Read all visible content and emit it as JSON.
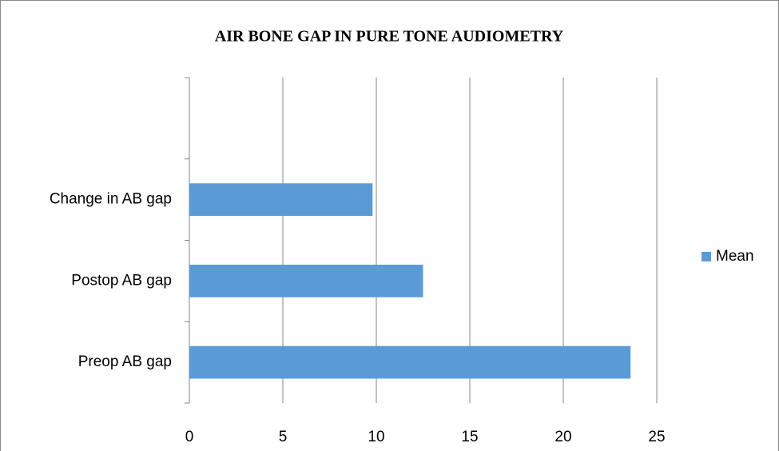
{
  "chart_data": {
    "type": "barh",
    "title": "AIR BONE GAP IN PURE TONE AUDIOMETRY",
    "categories": [
      "Preop AB gap",
      "Postop AB gap",
      "Change in AB gap",
      null
    ],
    "series": [
      {
        "name": "Mean",
        "color": "#5b9bd5",
        "values": [
          23.6,
          12.5,
          9.8,
          null
        ]
      }
    ],
    "xlim": [
      0,
      25
    ],
    "xticks": [
      0,
      5,
      10,
      15,
      20,
      25
    ],
    "grid": true,
    "legend": "right"
  }
}
